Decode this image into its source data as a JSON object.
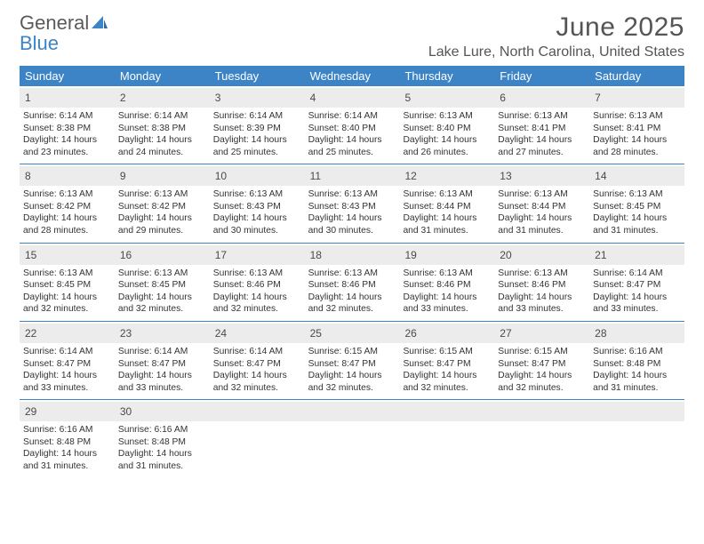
{
  "brand": {
    "word1": "General",
    "word2": "Blue"
  },
  "title": "June 2025",
  "location": "Lake Lure, North Carolina, United States",
  "colors": {
    "accent": "#3d84c6",
    "daynum_bg": "#ececec",
    "text": "#333333",
    "muted": "#555555"
  },
  "day_headers": [
    "Sunday",
    "Monday",
    "Tuesday",
    "Wednesday",
    "Thursday",
    "Friday",
    "Saturday"
  ],
  "weeks": [
    [
      {
        "n": "1",
        "sunrise": "6:14 AM",
        "sunset": "8:38 PM",
        "daylight": "14 hours and 23 minutes."
      },
      {
        "n": "2",
        "sunrise": "6:14 AM",
        "sunset": "8:38 PM",
        "daylight": "14 hours and 24 minutes."
      },
      {
        "n": "3",
        "sunrise": "6:14 AM",
        "sunset": "8:39 PM",
        "daylight": "14 hours and 25 minutes."
      },
      {
        "n": "4",
        "sunrise": "6:14 AM",
        "sunset": "8:40 PM",
        "daylight": "14 hours and 25 minutes."
      },
      {
        "n": "5",
        "sunrise": "6:13 AM",
        "sunset": "8:40 PM",
        "daylight": "14 hours and 26 minutes."
      },
      {
        "n": "6",
        "sunrise": "6:13 AM",
        "sunset": "8:41 PM",
        "daylight": "14 hours and 27 minutes."
      },
      {
        "n": "7",
        "sunrise": "6:13 AM",
        "sunset": "8:41 PM",
        "daylight": "14 hours and 28 minutes."
      }
    ],
    [
      {
        "n": "8",
        "sunrise": "6:13 AM",
        "sunset": "8:42 PM",
        "daylight": "14 hours and 28 minutes."
      },
      {
        "n": "9",
        "sunrise": "6:13 AM",
        "sunset": "8:42 PM",
        "daylight": "14 hours and 29 minutes."
      },
      {
        "n": "10",
        "sunrise": "6:13 AM",
        "sunset": "8:43 PM",
        "daylight": "14 hours and 30 minutes."
      },
      {
        "n": "11",
        "sunrise": "6:13 AM",
        "sunset": "8:43 PM",
        "daylight": "14 hours and 30 minutes."
      },
      {
        "n": "12",
        "sunrise": "6:13 AM",
        "sunset": "8:44 PM",
        "daylight": "14 hours and 31 minutes."
      },
      {
        "n": "13",
        "sunrise": "6:13 AM",
        "sunset": "8:44 PM",
        "daylight": "14 hours and 31 minutes."
      },
      {
        "n": "14",
        "sunrise": "6:13 AM",
        "sunset": "8:45 PM",
        "daylight": "14 hours and 31 minutes."
      }
    ],
    [
      {
        "n": "15",
        "sunrise": "6:13 AM",
        "sunset": "8:45 PM",
        "daylight": "14 hours and 32 minutes."
      },
      {
        "n": "16",
        "sunrise": "6:13 AM",
        "sunset": "8:45 PM",
        "daylight": "14 hours and 32 minutes."
      },
      {
        "n": "17",
        "sunrise": "6:13 AM",
        "sunset": "8:46 PM",
        "daylight": "14 hours and 32 minutes."
      },
      {
        "n": "18",
        "sunrise": "6:13 AM",
        "sunset": "8:46 PM",
        "daylight": "14 hours and 32 minutes."
      },
      {
        "n": "19",
        "sunrise": "6:13 AM",
        "sunset": "8:46 PM",
        "daylight": "14 hours and 33 minutes."
      },
      {
        "n": "20",
        "sunrise": "6:13 AM",
        "sunset": "8:46 PM",
        "daylight": "14 hours and 33 minutes."
      },
      {
        "n": "21",
        "sunrise": "6:14 AM",
        "sunset": "8:47 PM",
        "daylight": "14 hours and 33 minutes."
      }
    ],
    [
      {
        "n": "22",
        "sunrise": "6:14 AM",
        "sunset": "8:47 PM",
        "daylight": "14 hours and 33 minutes."
      },
      {
        "n": "23",
        "sunrise": "6:14 AM",
        "sunset": "8:47 PM",
        "daylight": "14 hours and 33 minutes."
      },
      {
        "n": "24",
        "sunrise": "6:14 AM",
        "sunset": "8:47 PM",
        "daylight": "14 hours and 32 minutes."
      },
      {
        "n": "25",
        "sunrise": "6:15 AM",
        "sunset": "8:47 PM",
        "daylight": "14 hours and 32 minutes."
      },
      {
        "n": "26",
        "sunrise": "6:15 AM",
        "sunset": "8:47 PM",
        "daylight": "14 hours and 32 minutes."
      },
      {
        "n": "27",
        "sunrise": "6:15 AM",
        "sunset": "8:47 PM",
        "daylight": "14 hours and 32 minutes."
      },
      {
        "n": "28",
        "sunrise": "6:16 AM",
        "sunset": "8:48 PM",
        "daylight": "14 hours and 31 minutes."
      }
    ],
    [
      {
        "n": "29",
        "sunrise": "6:16 AM",
        "sunset": "8:48 PM",
        "daylight": "14 hours and 31 minutes."
      },
      {
        "n": "30",
        "sunrise": "6:16 AM",
        "sunset": "8:48 PM",
        "daylight": "14 hours and 31 minutes."
      },
      {
        "empty": true
      },
      {
        "empty": true
      },
      {
        "empty": true
      },
      {
        "empty": true
      },
      {
        "empty": true
      }
    ]
  ],
  "labels": {
    "sunrise": "Sunrise:",
    "sunset": "Sunset:",
    "daylight": "Daylight:"
  }
}
